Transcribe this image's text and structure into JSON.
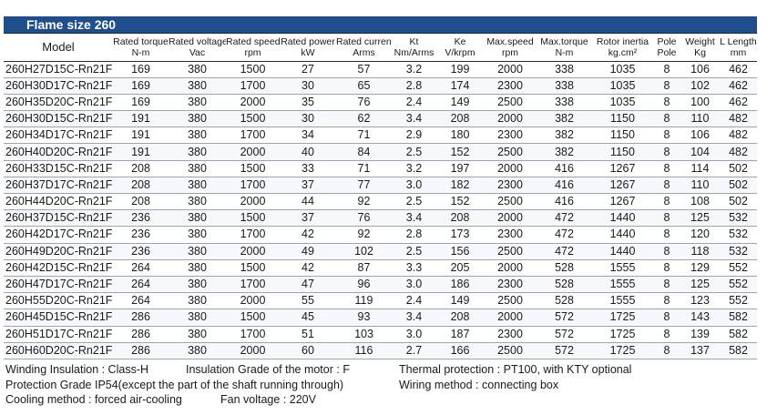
{
  "title": "Flame size 260",
  "headers": [
    {
      "label": "Model",
      "unit": ""
    },
    {
      "label": "Rated torque",
      "unit": "N-m"
    },
    {
      "label": "Rated voltage",
      "unit": "Vac"
    },
    {
      "label": "Rated speed",
      "unit": "rpm"
    },
    {
      "label": "Rated power",
      "unit": "kW"
    },
    {
      "label": "Rated current",
      "unit": "Arms"
    },
    {
      "label": "Kt",
      "unit": "Nm/Arms"
    },
    {
      "label": "Ke",
      "unit": "V/krpm"
    },
    {
      "label": "Max.speed",
      "unit": "rpm"
    },
    {
      "label": "Max.torque",
      "unit": "N-m"
    },
    {
      "label": "Rotor inertia",
      "unit": "kg.cm²"
    },
    {
      "label": "Pole",
      "unit": "Pole"
    },
    {
      "label": "Weight",
      "unit": "Kg"
    },
    {
      "label": "L Length",
      "unit": "mm"
    }
  ],
  "rows": [
    [
      "260H27D15C-Rn21F",
      "169",
      "380",
      "1500",
      "27",
      "57",
      "3.2",
      "199",
      "2000",
      "338",
      "1035",
      "8",
      "106",
      "462"
    ],
    [
      "260H30D17C-Rn21F",
      "169",
      "380",
      "1700",
      "30",
      "65",
      "2.8",
      "174",
      "2300",
      "338",
      "1035",
      "8",
      "102",
      "462"
    ],
    [
      "260H35D20C-Rn21F",
      "169",
      "380",
      "2000",
      "35",
      "76",
      "2.4",
      "149",
      "2500",
      "338",
      "1035",
      "8",
      "100",
      "462"
    ],
    [
      "260H30D15C-Rn21F",
      "191",
      "380",
      "1500",
      "30",
      "62",
      "3.4",
      "208",
      "2000",
      "382",
      "1150",
      "8",
      "110",
      "482"
    ],
    [
      "260H34D17C-Rn21F",
      "191",
      "380",
      "1700",
      "34",
      "71",
      "2.9",
      "180",
      "2300",
      "382",
      "1150",
      "8",
      "106",
      "482"
    ],
    [
      "260H40D20C-Rn21F",
      "191",
      "380",
      "2000",
      "40",
      "84",
      "2.5",
      "152",
      "2500",
      "382",
      "1150",
      "8",
      "104",
      "482"
    ],
    [
      "260H33D15C-Rn21F",
      "208",
      "380",
      "1500",
      "33",
      "71",
      "3.2",
      "197",
      "2000",
      "416",
      "1267",
      "8",
      "114",
      "502"
    ],
    [
      "260H37D17C-Rn21F",
      "208",
      "380",
      "1700",
      "37",
      "77",
      "3.0",
      "182",
      "2300",
      "416",
      "1267",
      "8",
      "110",
      "502"
    ],
    [
      "260H44D20C-Rn21F",
      "208",
      "380",
      "2000",
      "44",
      "92",
      "2.5",
      "152",
      "2500",
      "416",
      "1267",
      "8",
      "108",
      "502"
    ],
    [
      "260H37D15C-Rn21F",
      "236",
      "380",
      "1500",
      "37",
      "76",
      "3.4",
      "208",
      "2000",
      "472",
      "1440",
      "8",
      "125",
      "532"
    ],
    [
      "260H42D17C-Rn21F",
      "236",
      "380",
      "1700",
      "42",
      "92",
      "2.8",
      "173",
      "2300",
      "472",
      "1440",
      "8",
      "120",
      "532"
    ],
    [
      "260H49D20C-Rn21F",
      "236",
      "380",
      "2000",
      "49",
      "102",
      "2.5",
      "156",
      "2500",
      "472",
      "1440",
      "8",
      "118",
      "532"
    ],
    [
      "260H42D15C-Rn21F",
      "264",
      "380",
      "1500",
      "42",
      "87",
      "3.3",
      "205",
      "2000",
      "528",
      "1555",
      "8",
      "129",
      "552"
    ],
    [
      "260H47D17C-Rn21F",
      "264",
      "380",
      "1700",
      "47",
      "96",
      "3.0",
      "186",
      "2300",
      "528",
      "1555",
      "8",
      "125",
      "552"
    ],
    [
      "260H55D20C-Rn21F",
      "264",
      "380",
      "2000",
      "55",
      "119",
      "2.4",
      "149",
      "2500",
      "528",
      "1555",
      "8",
      "123",
      "552"
    ],
    [
      "260H45D15C-Rn21F",
      "286",
      "380",
      "1500",
      "45",
      "93",
      "3.4",
      "208",
      "2000",
      "572",
      "1725",
      "8",
      "143",
      "582"
    ],
    [
      "260H51D17C-Rn21F",
      "286",
      "380",
      "1700",
      "51",
      "103",
      "3.0",
      "187",
      "2300",
      "572",
      "1725",
      "8",
      "139",
      "582"
    ],
    [
      "260H60D20C-Rn21F",
      "286",
      "380",
      "2000",
      "60",
      "116",
      "2.7",
      "166",
      "2500",
      "572",
      "1725",
      "8",
      "137",
      "582"
    ]
  ],
  "notes": {
    "winding_insulation": "Winding Insulation : Class-H",
    "insulation_grade": "Insulation Grade of the motor : F",
    "thermal_protection": "Thermal protection : PT100, with KTY optional",
    "protection_grade": "Protection Grade IP54(except the part of the shaft running through)",
    "wiring_method": "Wiring method : connecting box",
    "cooling_method": "Cooling method : forced air-cooling",
    "fan_voltage": "Fan voltage : 220V"
  },
  "colors": {
    "title_bar": "#1f4e8c",
    "title_text": "#ffffff"
  }
}
